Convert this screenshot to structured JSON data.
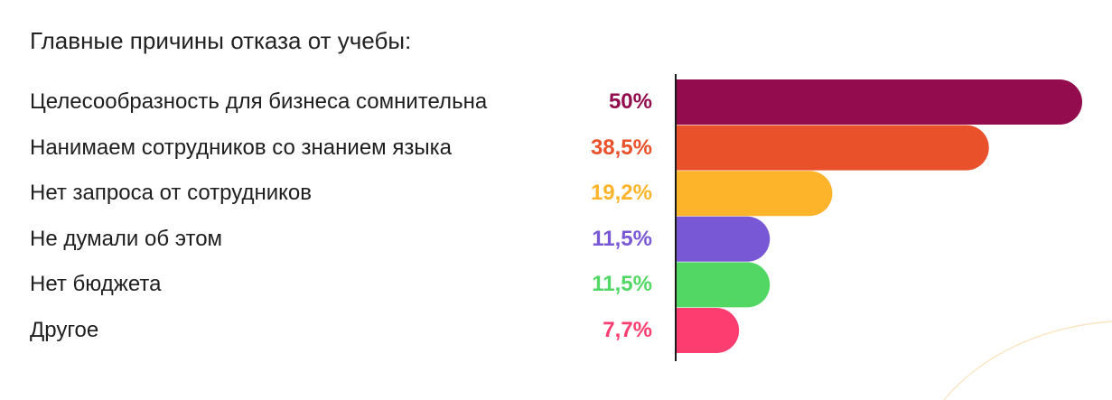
{
  "title": "Главные причины отказа от учебы:",
  "chart_data": {
    "type": "bar",
    "orientation": "horizontal",
    "categories": [
      "Целесообразность для бизнеса сомнительна",
      "Нанимаем сотрудников со знанием языка",
      "Нет запроса от сотрудников",
      "Не думали об этом",
      "Нет бюджета",
      "Другое"
    ],
    "values": [
      50,
      38.5,
      19.2,
      11.5,
      11.5,
      7.7
    ],
    "value_labels": [
      "50%",
      "38,5%",
      "19,2%",
      "11,5%",
      "11,5%",
      "7,7%"
    ],
    "colors": [
      "#930c4e",
      "#e9512b",
      "#fdb42b",
      "#7858d4",
      "#52d764",
      "#fd3d70"
    ],
    "xlim": [
      0,
      50
    ],
    "grid": false,
    "legend": "none"
  }
}
